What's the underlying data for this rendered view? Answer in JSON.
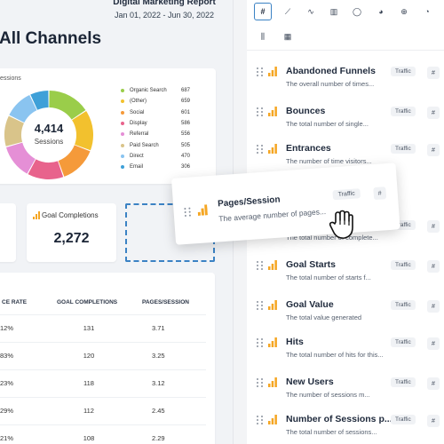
{
  "report": {
    "title": "Digital Marketing Report",
    "date_range": "Jan 01, 2022 - Jun 30, 2022",
    "section_title": "All Channels",
    "donut": {
      "caption": "essions",
      "center_value": "4,414",
      "center_label": "Sessions",
      "segments": [
        {
          "label": "Organic Search",
          "value": "687",
          "color": "#9acd4a"
        },
        {
          "label": "(Other)",
          "value": "659",
          "color": "#f2c12e"
        },
        {
          "label": "Social",
          "value": "601",
          "color": "#f59a3a"
        },
        {
          "label": "Display",
          "value": "586",
          "color": "#e8638c"
        },
        {
          "label": "Referral",
          "value": "556",
          "color": "#e58fd6"
        },
        {
          "label": "Paid Search",
          "value": "505",
          "color": "#d9c48a"
        },
        {
          "label": "Direct",
          "value": "470",
          "color": "#8ac4f0"
        },
        {
          "label": "Email",
          "value": "306",
          "color": "#3ea0d8"
        }
      ]
    },
    "goal_card": {
      "label": "Goal Completions",
      "value": "2,272"
    },
    "table": {
      "headers": [
        "CE RATE",
        "GOAL COMPLETIONS",
        "PAGES/SESSION"
      ],
      "rows": [
        [
          "12%",
          "131",
          "3.71"
        ],
        [
          "83%",
          "120",
          "3.25"
        ],
        [
          "23%",
          "118",
          "3.12"
        ],
        [
          "29%",
          "112",
          "2.45"
        ],
        [
          "21%",
          "108",
          "2.29"
        ]
      ]
    }
  },
  "panel": {
    "toolbar": [
      {
        "icon": "hash-icon",
        "glyph": "#",
        "active": true
      },
      {
        "icon": "line-chart-icon",
        "glyph": "⟋",
        "active": false
      },
      {
        "icon": "wave-chart-icon",
        "glyph": "∿",
        "active": false
      },
      {
        "icon": "bar-chart-icon",
        "glyph": "▥",
        "active": false
      },
      {
        "icon": "donut-icon",
        "glyph": "◯",
        "active": false
      },
      {
        "icon": "pie-icon",
        "glyph": "◕",
        "active": false
      },
      {
        "icon": "globe-icon",
        "glyph": "⊕",
        "active": false
      },
      {
        "icon": "gauge-icon",
        "glyph": "◔",
        "active": false
      },
      {
        "icon": "column-chart-icon",
        "glyph": "⫼",
        "active": false
      },
      {
        "icon": "table-icon",
        "glyph": "▦",
        "active": false
      }
    ],
    "metrics": [
      {
        "name": "Abandoned Funnels",
        "desc": "The overall number of times...",
        "badge": "Traffic",
        "hash": "#"
      },
      {
        "name": "Bounces",
        "desc": "The total number of single...",
        "badge": "Traffic",
        "hash": "#"
      },
      {
        "name": "Entrances",
        "desc": "The number of time visitors...",
        "badge": "Traffic",
        "hash": "#"
      },
      {
        "name": "",
        "desc": "The total number of complete...",
        "badge": "Traffic",
        "hash": "#"
      },
      {
        "name": "Goal Starts",
        "desc": "The total number of starts f...",
        "badge": "Traffic",
        "hash": "#"
      },
      {
        "name": "Goal Value",
        "desc": "The total value generated",
        "badge": "Traffic",
        "hash": "#"
      },
      {
        "name": "Hits",
        "desc": "The total number of hits for this...",
        "badge": "Traffic",
        "hash": "#"
      },
      {
        "name": "New Users",
        "desc": "The number of sessions m...",
        "badge": "Traffic",
        "hash": "#"
      },
      {
        "name": "Number of Sessions p...",
        "desc": "The total number of sessions...",
        "badge": "Traffic",
        "hash": "#"
      }
    ],
    "dragged": {
      "name": "Pages/Session",
      "desc": "The average number of pages...",
      "badge": "Traffic",
      "hash": "#"
    }
  },
  "colors": {
    "accent": "#3b82c4",
    "bar_icon": "#f5a623"
  }
}
